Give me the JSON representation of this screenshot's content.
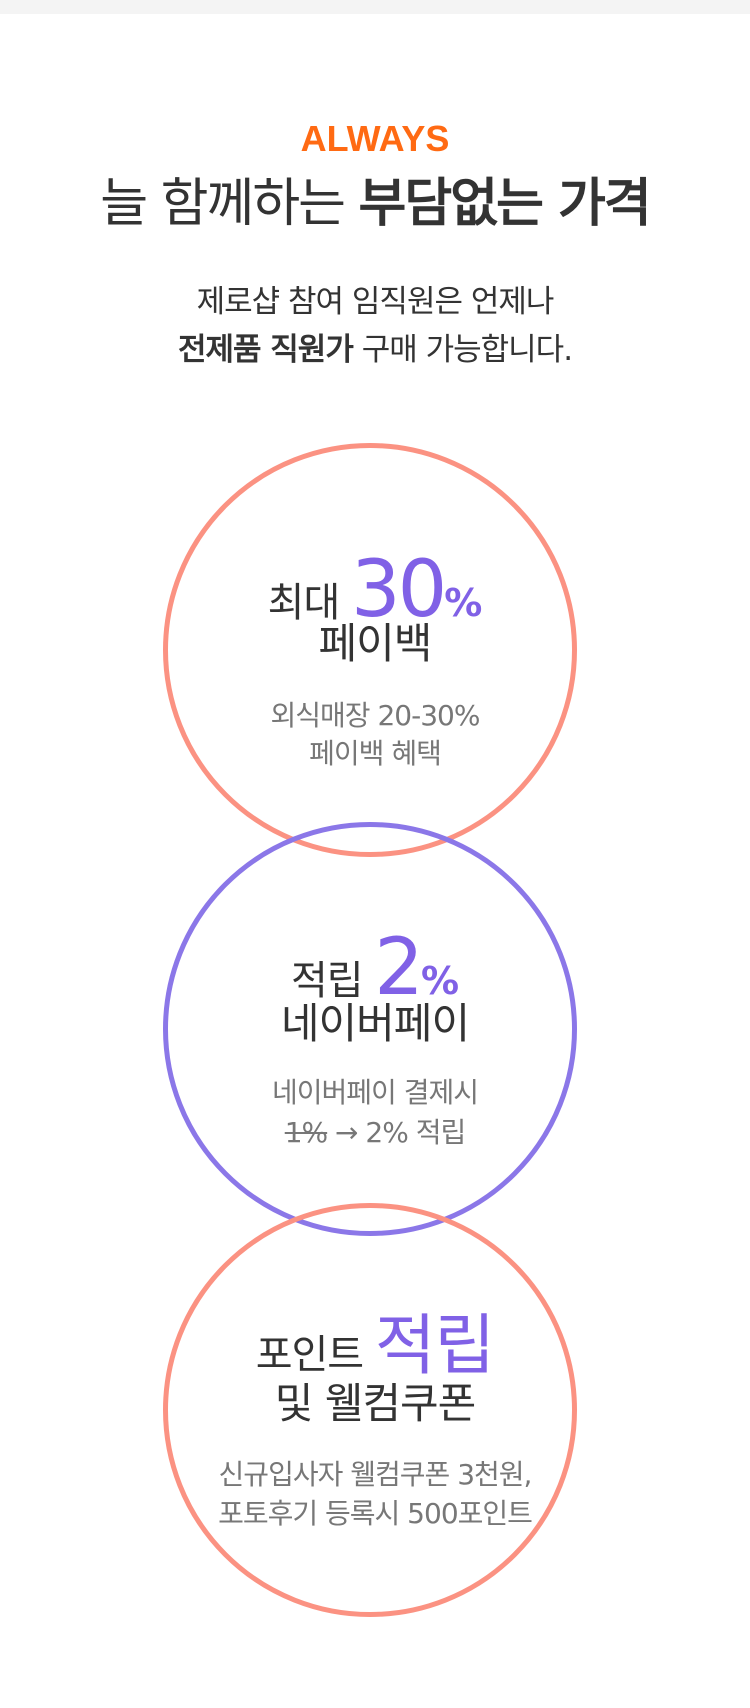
{
  "header": {
    "eyebrow": "ALWAYS",
    "headline_regular": "늘 함께하는 ",
    "headline_bold": "부담없는 가격",
    "sub_line1": "제로샵 참여 임직원은 언제나",
    "sub_line2_bold": "전제품 직원가",
    "sub_line2_rest": " 구매 가능합니다."
  },
  "benefits": [
    {
      "prefix": "최대 ",
      "number": "30",
      "unit": "%",
      "title": "페이백",
      "desc_line1": "외식매장 20-30%",
      "desc_line2": "페이백 혜택",
      "ring_color": "#fb9282"
    },
    {
      "prefix": "적립 ",
      "number": "2",
      "unit": "%",
      "title": "네이버페이",
      "desc_line1": "네이버페이 결제시",
      "desc_strike": "1%",
      "desc_rest": " → 2% 적립",
      "ring_color": "#8b77e8"
    },
    {
      "prefix": "포인트 ",
      "accent_word": "적립",
      "title": "및 웰컴쿠폰",
      "desc_line1": "신규입사자 웰컴쿠폰 3천원,",
      "desc_line2": "포토후기 등록시 500포인트",
      "ring_color": "#fb9282"
    }
  ],
  "colors": {
    "eyebrow": "#ff6a13",
    "accent": "#8061e6",
    "text": "#333333",
    "muted": "#777777"
  }
}
